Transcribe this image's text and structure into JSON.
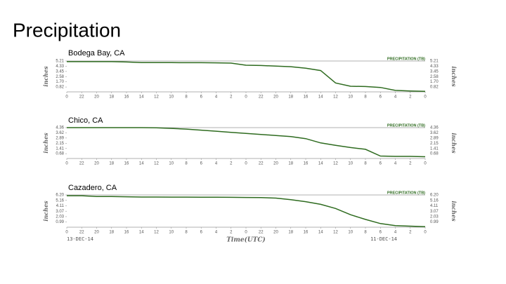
{
  "title": "Precipitation",
  "chart_data": [
    {
      "type": "line",
      "title": "Bodega Bay, CA",
      "ylabel": "inches",
      "x": [
        0,
        2,
        4,
        6,
        8,
        10,
        12,
        14,
        16,
        18,
        20,
        22,
        24,
        26,
        28,
        30,
        32,
        34,
        36,
        38,
        40,
        42,
        44,
        46,
        48
      ],
      "series": [
        {
          "name": "PRECIPITATION (TB)",
          "color": "#2e6b1f",
          "values": [
            5.1,
            5.1,
            5.1,
            5.1,
            5.05,
            4.95,
            4.95,
            4.94,
            4.93,
            4.92,
            4.9,
            4.85,
            4.5,
            4.45,
            4.35,
            4.25,
            4.0,
            3.6,
            1.5,
            0.95,
            0.9,
            0.75,
            0.25,
            0.15,
            0.1
          ]
        }
      ],
      "xlim": [
        0,
        48
      ],
      "xticks": [
        {
          "value": 0,
          "label": "0"
        },
        {
          "value": 2,
          "label": "22"
        },
        {
          "value": 4,
          "label": "20"
        },
        {
          "value": 6,
          "label": "18"
        },
        {
          "value": 8,
          "label": "16"
        },
        {
          "value": 10,
          "label": "14"
        },
        {
          "value": 12,
          "label": "12"
        },
        {
          "value": 14,
          "label": "10"
        },
        {
          "value": 16,
          "label": "8"
        },
        {
          "value": 18,
          "label": "6"
        },
        {
          "value": 20,
          "label": "4"
        },
        {
          "value": 22,
          "label": "2"
        },
        {
          "value": 24,
          "label": "0"
        },
        {
          "value": 26,
          "label": "22"
        },
        {
          "value": 28,
          "label": "20"
        },
        {
          "value": 30,
          "label": "18"
        },
        {
          "value": 32,
          "label": "16"
        },
        {
          "value": 34,
          "label": "14"
        },
        {
          "value": 36,
          "label": "12"
        },
        {
          "value": 38,
          "label": "10"
        },
        {
          "value": 40,
          "label": "8"
        },
        {
          "value": 42,
          "label": "6"
        },
        {
          "value": 44,
          "label": "4"
        },
        {
          "value": 46,
          "label": "2"
        },
        {
          "value": 48,
          "label": "0"
        }
      ],
      "ylim": [
        0,
        5.21
      ],
      "yticks": [
        0.82,
        {
          "value": 1.7,
          "label": "1.70"
        },
        2.58,
        3.45,
        4.33,
        5.21
      ]
    },
    {
      "type": "line",
      "title": "Chico, CA",
      "ylabel": "inches",
      "x": [
        0,
        2,
        4,
        6,
        8,
        10,
        12,
        14,
        16,
        18,
        20,
        22,
        24,
        26,
        28,
        30,
        32,
        34,
        36,
        38,
        40,
        42,
        44,
        46,
        48
      ],
      "series": [
        {
          "name": "PRECIPITATION (TB)",
          "color": "#2e6b1f",
          "values": [
            4.36,
            4.36,
            4.36,
            4.36,
            4.36,
            4.36,
            4.33,
            4.25,
            4.15,
            4.0,
            3.85,
            3.7,
            3.55,
            3.4,
            3.25,
            3.1,
            2.8,
            2.2,
            1.85,
            1.55,
            1.3,
            0.35,
            0.3,
            0.3,
            0.25
          ]
        }
      ],
      "xlim": [
        0,
        48
      ],
      "xticks": [
        {
          "value": 0,
          "label": "0"
        },
        {
          "value": 2,
          "label": "22"
        },
        {
          "value": 4,
          "label": "20"
        },
        {
          "value": 6,
          "label": "18"
        },
        {
          "value": 8,
          "label": "16"
        },
        {
          "value": 10,
          "label": "14"
        },
        {
          "value": 12,
          "label": "12"
        },
        {
          "value": 14,
          "label": "10"
        },
        {
          "value": 16,
          "label": "8"
        },
        {
          "value": 18,
          "label": "6"
        },
        {
          "value": 20,
          "label": "4"
        },
        {
          "value": 22,
          "label": "2"
        },
        {
          "value": 24,
          "label": "0"
        },
        {
          "value": 26,
          "label": "22"
        },
        {
          "value": 28,
          "label": "20"
        },
        {
          "value": 30,
          "label": "18"
        },
        {
          "value": 32,
          "label": "16"
        },
        {
          "value": 34,
          "label": "14"
        },
        {
          "value": 36,
          "label": "12"
        },
        {
          "value": 38,
          "label": "10"
        },
        {
          "value": 40,
          "label": "8"
        },
        {
          "value": 42,
          "label": "6"
        },
        {
          "value": 44,
          "label": "4"
        },
        {
          "value": 46,
          "label": "2"
        },
        {
          "value": 48,
          "label": "0"
        }
      ],
      "ylim": [
        0,
        4.36
      ],
      "yticks": [
        0.68,
        1.41,
        2.15,
        2.89,
        3.62,
        4.36
      ]
    },
    {
      "type": "line",
      "title": "Cazadero, CA",
      "ylabel": "inches",
      "xlabel": "Time(UTC)",
      "annotations": [
        "13-DEC-14",
        "11-DEC-14"
      ],
      "x": [
        0,
        2,
        4,
        6,
        8,
        10,
        12,
        14,
        16,
        18,
        20,
        22,
        24,
        26,
        28,
        30,
        32,
        34,
        36,
        38,
        40,
        42,
        44,
        46,
        48
      ],
      "series": [
        {
          "name": "PRECIPITATION (TB)",
          "color": "#2e6b1f",
          "values": [
            6.05,
            6.05,
            5.9,
            5.9,
            5.85,
            5.8,
            5.8,
            5.78,
            5.78,
            5.76,
            5.75,
            5.74,
            5.72,
            5.7,
            5.6,
            5.3,
            4.9,
            4.4,
            3.6,
            2.4,
            1.5,
            0.7,
            0.3,
            0.2,
            0.1
          ]
        }
      ],
      "xlim": [
        0,
        48
      ],
      "xticks": [
        {
          "value": 0,
          "label": "0"
        },
        {
          "value": 2,
          "label": "22"
        },
        {
          "value": 4,
          "label": "20"
        },
        {
          "value": 6,
          "label": "18"
        },
        {
          "value": 8,
          "label": "16"
        },
        {
          "value": 10,
          "label": "14"
        },
        {
          "value": 12,
          "label": "12"
        },
        {
          "value": 14,
          "label": "10"
        },
        {
          "value": 16,
          "label": "8"
        },
        {
          "value": 18,
          "label": "6"
        },
        {
          "value": 20,
          "label": "4"
        },
        {
          "value": 22,
          "label": "2"
        },
        {
          "value": 24,
          "label": "0"
        },
        {
          "value": 26,
          "label": "22"
        },
        {
          "value": 28,
          "label": "20"
        },
        {
          "value": 30,
          "label": "18"
        },
        {
          "value": 32,
          "label": "16"
        },
        {
          "value": 34,
          "label": "14"
        },
        {
          "value": 36,
          "label": "12"
        },
        {
          "value": 38,
          "label": "10"
        },
        {
          "value": 40,
          "label": "8"
        },
        {
          "value": 42,
          "label": "6"
        },
        {
          "value": 44,
          "label": "4"
        },
        {
          "value": 46,
          "label": "2"
        },
        {
          "value": 48,
          "label": "0"
        }
      ],
      "ylim": [
        0,
        6.2
      ],
      "yticks": [
        0.99,
        2.03,
        3.07,
        4.11,
        5.16,
        {
          "value": 6.2,
          "label": "6.20"
        }
      ]
    }
  ]
}
